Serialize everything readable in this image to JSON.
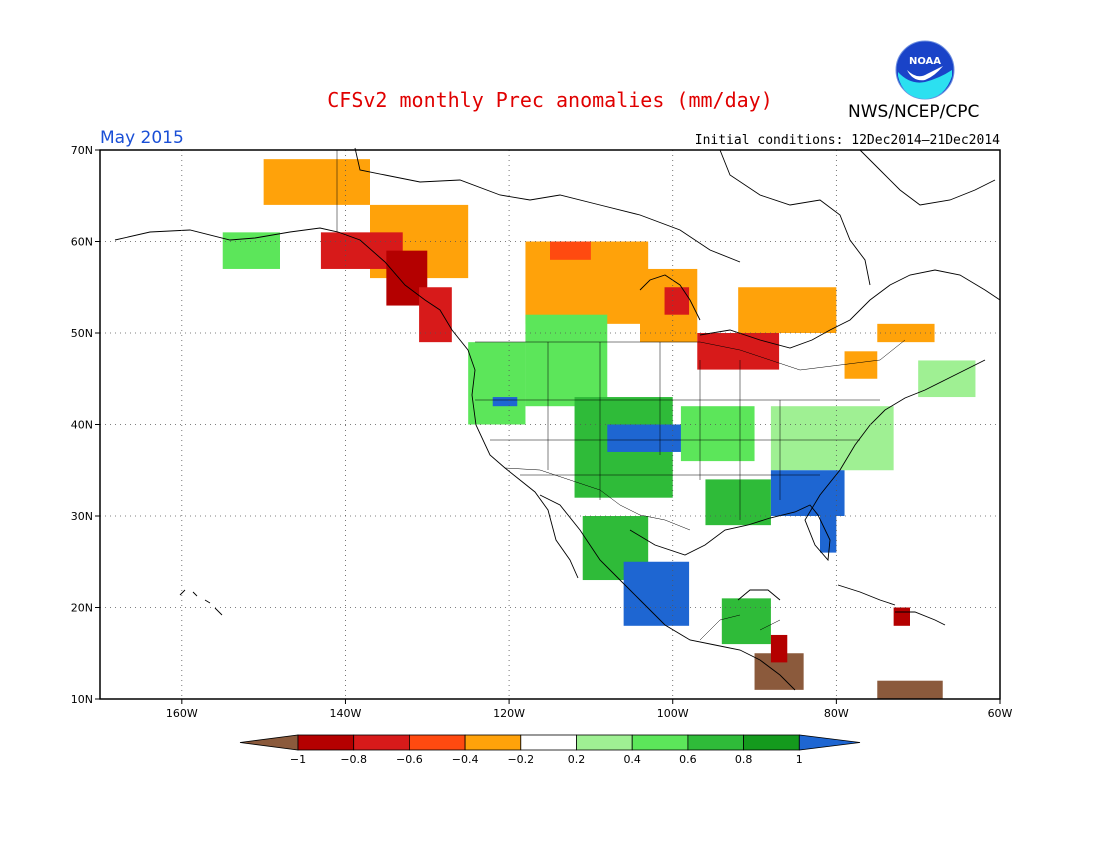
{
  "title": "CFSv2 monthly Prec anomalies (mm/day)",
  "month_label": "May 2015",
  "initial_conditions": "Initial conditions: 12Dec2014–21Dec2014",
  "agency": "NWS/NCEP/CPC",
  "logo_text": "NOAA",
  "colors": {
    "title": "#e00000",
    "month": "#1a4fd6",
    "grid": "#555555"
  },
  "map": {
    "lon_range": [
      -170,
      -60
    ],
    "lat_range": [
      10,
      70
    ],
    "lon_ticks": [
      {
        "value": -160,
        "label": "160W"
      },
      {
        "value": -140,
        "label": "140W"
      },
      {
        "value": -120,
        "label": "120W"
      },
      {
        "value": -100,
        "label": "100W"
      },
      {
        "value": -80,
        "label": "80W"
      },
      {
        "value": -60,
        "label": "60W"
      }
    ],
    "lat_ticks": [
      {
        "value": 10,
        "label": "10N"
      },
      {
        "value": 20,
        "label": "20N"
      },
      {
        "value": 30,
        "label": "30N"
      },
      {
        "value": 40,
        "label": "40N"
      },
      {
        "value": 50,
        "label": "50N"
      },
      {
        "value": 60,
        "label": "60N"
      },
      {
        "value": 70,
        "label": "70N"
      }
    ]
  },
  "colorbar": {
    "labels": [
      "−1",
      "−0.8",
      "−0.6",
      "−0.4",
      "−0.2",
      "0.2",
      "0.4",
      "0.6",
      "0.8",
      "1"
    ],
    "colors": [
      "#8b5a3c",
      "#b40000",
      "#d71a1a",
      "#ff4a10",
      "#ffa20a",
      "#ffffff",
      "#9ff093",
      "#5ce65a",
      "#2fbb39",
      "#149a1d",
      "#1e66d2"
    ]
  },
  "anomaly_regions": [
    {
      "level": -0.3,
      "lon": [
        -150,
        -137
      ],
      "lat": [
        64,
        69
      ]
    },
    {
      "level": -0.3,
      "lon": [
        -137,
        -125
      ],
      "lat": [
        56,
        64
      ]
    },
    {
      "level": -0.7,
      "lon": [
        -143,
        -133
      ],
      "lat": [
        57,
        61
      ]
    },
    {
      "level": -0.9,
      "lon": [
        -135,
        -130
      ],
      "lat": [
        53,
        59
      ]
    },
    {
      "level": -0.7,
      "lon": [
        -131,
        -127
      ],
      "lat": [
        49,
        55
      ]
    },
    {
      "level": -0.3,
      "lon": [
        -118,
        -103
      ],
      "lat": [
        51,
        60
      ]
    },
    {
      "level": -0.5,
      "lon": [
        -115,
        -110
      ],
      "lat": [
        58,
        60
      ]
    },
    {
      "level": -0.3,
      "lon": [
        -104,
        -97
      ],
      "lat": [
        49,
        57
      ]
    },
    {
      "level": -0.7,
      "lon": [
        -101,
        -98
      ],
      "lat": [
        52,
        55
      ]
    },
    {
      "level": -0.3,
      "lon": [
        -92,
        -80
      ],
      "lat": [
        50,
        55
      ]
    },
    {
      "level": -0.7,
      "lon": [
        -97,
        -87
      ],
      "lat": [
        46,
        50
      ]
    },
    {
      "level": -0.3,
      "lon": [
        -75,
        -68
      ],
      "lat": [
        49,
        51
      ]
    },
    {
      "level": -0.3,
      "lon": [
        -79,
        -75
      ],
      "lat": [
        45,
        48
      ]
    },
    {
      "level": 0.5,
      "lon": [
        -125,
        -118
      ],
      "lat": [
        40,
        49
      ]
    },
    {
      "level": 0.5,
      "lon": [
        -118,
        -108
      ],
      "lat": [
        42,
        52
      ]
    },
    {
      "level": 1.1,
      "lon": [
        -122,
        -119
      ],
      "lat": [
        42,
        43
      ]
    },
    {
      "level": 0.7,
      "lon": [
        -112,
        -100
      ],
      "lat": [
        32,
        43
      ]
    },
    {
      "level": 1.1,
      "lon": [
        -108,
        -98
      ],
      "lat": [
        37,
        40
      ]
    },
    {
      "level": 0.5,
      "lon": [
        -99,
        -90
      ],
      "lat": [
        36,
        42
      ]
    },
    {
      "level": 0.3,
      "lon": [
        -88,
        -73
      ],
      "lat": [
        35,
        42
      ]
    },
    {
      "level": 0.7,
      "lon": [
        -96,
        -88
      ],
      "lat": [
        29,
        34
      ]
    },
    {
      "level": 1.1,
      "lon": [
        -88,
        -79
      ],
      "lat": [
        30,
        35
      ]
    },
    {
      "level": 1.1,
      "lon": [
        -82,
        -80
      ],
      "lat": [
        26,
        30
      ]
    },
    {
      "level": 0.7,
      "lon": [
        -111,
        -103
      ],
      "lat": [
        23,
        30
      ]
    },
    {
      "level": 1.1,
      "lon": [
        -106,
        -98
      ],
      "lat": [
        18,
        25
      ]
    },
    {
      "level": 0.7,
      "lon": [
        -94,
        -88
      ],
      "lat": [
        16,
        21
      ]
    },
    {
      "level": -1.1,
      "lon": [
        -90,
        -84
      ],
      "lat": [
        11,
        15
      ]
    },
    {
      "level": -0.9,
      "lon": [
        -88,
        -86
      ],
      "lat": [
        14,
        17
      ]
    },
    {
      "level": -1.1,
      "lon": [
        -75,
        -67
      ],
      "lat": [
        10,
        12
      ]
    },
    {
      "level": -0.8,
      "lon": [
        -73,
        -71
      ],
      "lat": [
        18,
        20
      ]
    },
    {
      "level": 0.5,
      "lon": [
        -155,
        -148
      ],
      "lat": [
        57,
        61
      ]
    },
    {
      "level": 0.3,
      "lon": [
        -70,
        -63
      ],
      "lat": [
        43,
        47
      ]
    }
  ]
}
